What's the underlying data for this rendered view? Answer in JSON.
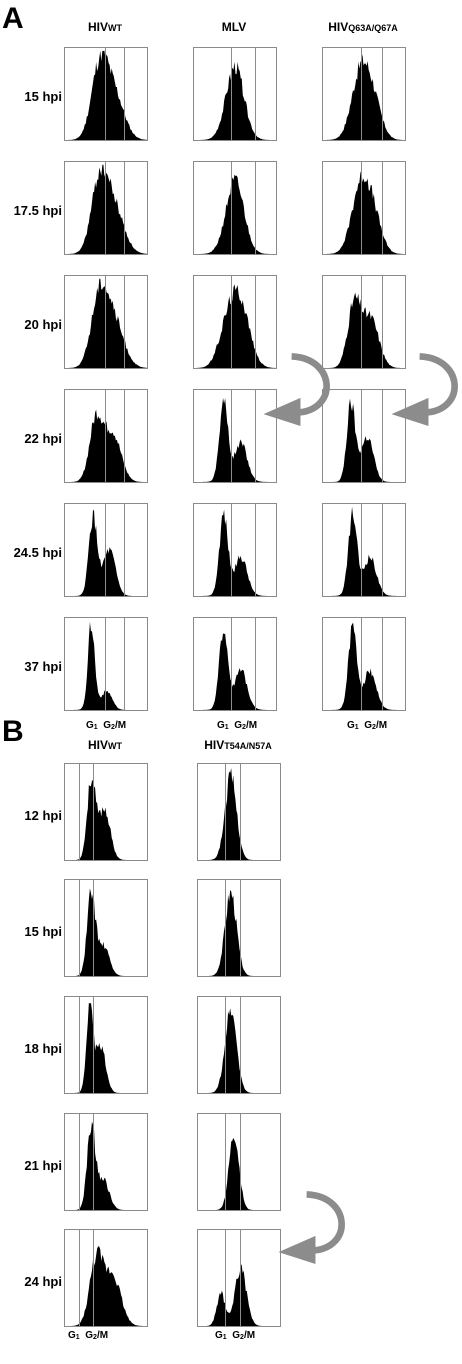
{
  "panelA": {
    "letter": "A",
    "columns": [
      {
        "name": "HIV",
        "sub": "WT"
      },
      {
        "name": "MLV",
        "sub": ""
      },
      {
        "name": "HIV",
        "sub": "Q63A/Q67A"
      }
    ],
    "rows": [
      "15 hpi",
      "17.5 hpi",
      "20 hpi",
      "22 hpi",
      "24.5 hpi",
      "37 hpi"
    ],
    "xlabels": {
      "g1": "G",
      "g1_sub": "1",
      "g2": "G",
      "g2_sub": "2",
      "g2_suffix": "/M"
    }
  },
  "panelB": {
    "letter": "B",
    "columns": [
      {
        "name": "HIV",
        "sub": "WT"
      },
      {
        "name": "HIV",
        "sub": "T54A/N57A"
      }
    ],
    "rows": [
      "12 hpi",
      "15 hpi",
      "18 hpi",
      "21 hpi",
      "24 hpi"
    ],
    "xlabels": {
      "g1": "G",
      "g1_sub": "1",
      "g2": "G",
      "g2_sub": "2",
      "g2_suffix": "/M"
    }
  },
  "colors": {
    "fill": "#000000",
    "frame": "#8a8a8a",
    "gate": "#8c8c8c",
    "arrow": "#8c8c8c"
  }
}
